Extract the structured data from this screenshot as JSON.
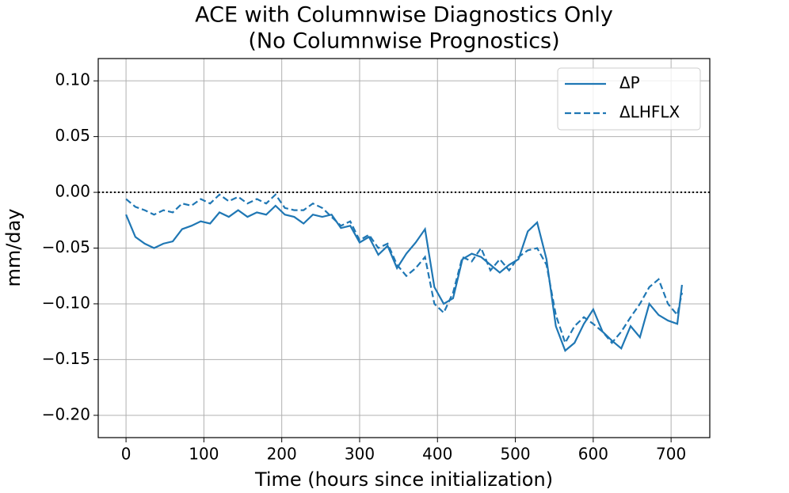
{
  "chart_data": {
    "type": "line",
    "title": [
      "ACE with Columnwise Diagnostics Only",
      "(No Columnwise Prognostics)"
    ],
    "x_label": "Time (hours since initialization)",
    "y_label": "mm/day",
    "x": [
      0,
      12,
      24,
      36,
      48,
      60,
      72,
      84,
      96,
      108,
      120,
      132,
      144,
      156,
      168,
      180,
      192,
      204,
      216,
      228,
      240,
      252,
      264,
      276,
      288,
      300,
      312,
      324,
      336,
      348,
      360,
      372,
      384,
      396,
      408,
      420,
      432,
      444,
      456,
      468,
      480,
      492,
      504,
      516,
      528,
      540,
      552,
      564,
      576,
      588,
      600,
      612,
      624,
      636,
      648,
      660,
      672,
      684,
      696,
      708,
      714
    ],
    "series": [
      {
        "name": "ΔP",
        "color": "#1f77b4",
        "linestyle": "solid",
        "values": [
          -0.02,
          -0.04,
          -0.046,
          -0.05,
          -0.046,
          -0.044,
          -0.033,
          -0.03,
          -0.026,
          -0.028,
          -0.018,
          -0.022,
          -0.016,
          -0.022,
          -0.018,
          -0.02,
          -0.012,
          -0.02,
          -0.022,
          -0.028,
          -0.02,
          -0.022,
          -0.02,
          -0.032,
          -0.03,
          -0.045,
          -0.04,
          -0.056,
          -0.048,
          -0.068,
          -0.055,
          -0.045,
          -0.033,
          -0.085,
          -0.1,
          -0.095,
          -0.06,
          -0.055,
          -0.058,
          -0.065,
          -0.072,
          -0.065,
          -0.06,
          -0.035,
          -0.027,
          -0.06,
          -0.12,
          -0.142,
          -0.135,
          -0.118,
          -0.105,
          -0.125,
          -0.133,
          -0.14,
          -0.12,
          -0.13,
          -0.1,
          -0.11,
          -0.115,
          -0.118,
          -0.083
        ]
      },
      {
        "name": "ΔLHFLX",
        "color": "#1f77b4",
        "linestyle": "dashed",
        "values": [
          -0.006,
          -0.013,
          -0.016,
          -0.02,
          -0.016,
          -0.018,
          -0.01,
          -0.012,
          -0.006,
          -0.01,
          -0.002,
          -0.008,
          -0.004,
          -0.01,
          -0.006,
          -0.01,
          -0.002,
          -0.014,
          -0.016,
          -0.016,
          -0.01,
          -0.014,
          -0.022,
          -0.03,
          -0.026,
          -0.043,
          -0.038,
          -0.05,
          -0.046,
          -0.065,
          -0.075,
          -0.068,
          -0.058,
          -0.1,
          -0.108,
          -0.09,
          -0.058,
          -0.062,
          -0.05,
          -0.07,
          -0.06,
          -0.07,
          -0.058,
          -0.052,
          -0.05,
          -0.065,
          -0.11,
          -0.135,
          -0.12,
          -0.112,
          -0.118,
          -0.125,
          -0.135,
          -0.125,
          -0.112,
          -0.1,
          -0.085,
          -0.078,
          -0.1,
          -0.11,
          -0.09
        ]
      }
    ],
    "xlim": [
      -35.7,
      749.7
    ],
    "ylim": [
      -0.22,
      0.12
    ],
    "xticks": [
      0,
      100,
      200,
      300,
      400,
      500,
      600,
      700
    ],
    "yticks": [
      {
        "value": 0.1,
        "label": "0.10"
      },
      {
        "value": 0.05,
        "label": "0.05"
      },
      {
        "value": 0.0,
        "label": "0.00"
      },
      {
        "value": -0.05,
        "label": "−0.05"
      },
      {
        "value": -0.1,
        "label": "−0.10"
      },
      {
        "value": -0.15,
        "label": "−0.15"
      },
      {
        "value": -0.2,
        "label": "−0.20"
      }
    ],
    "grid": true,
    "reference_line": {
      "y": 0,
      "color": "#000000",
      "style": "dotted"
    },
    "legend": "upper right"
  }
}
